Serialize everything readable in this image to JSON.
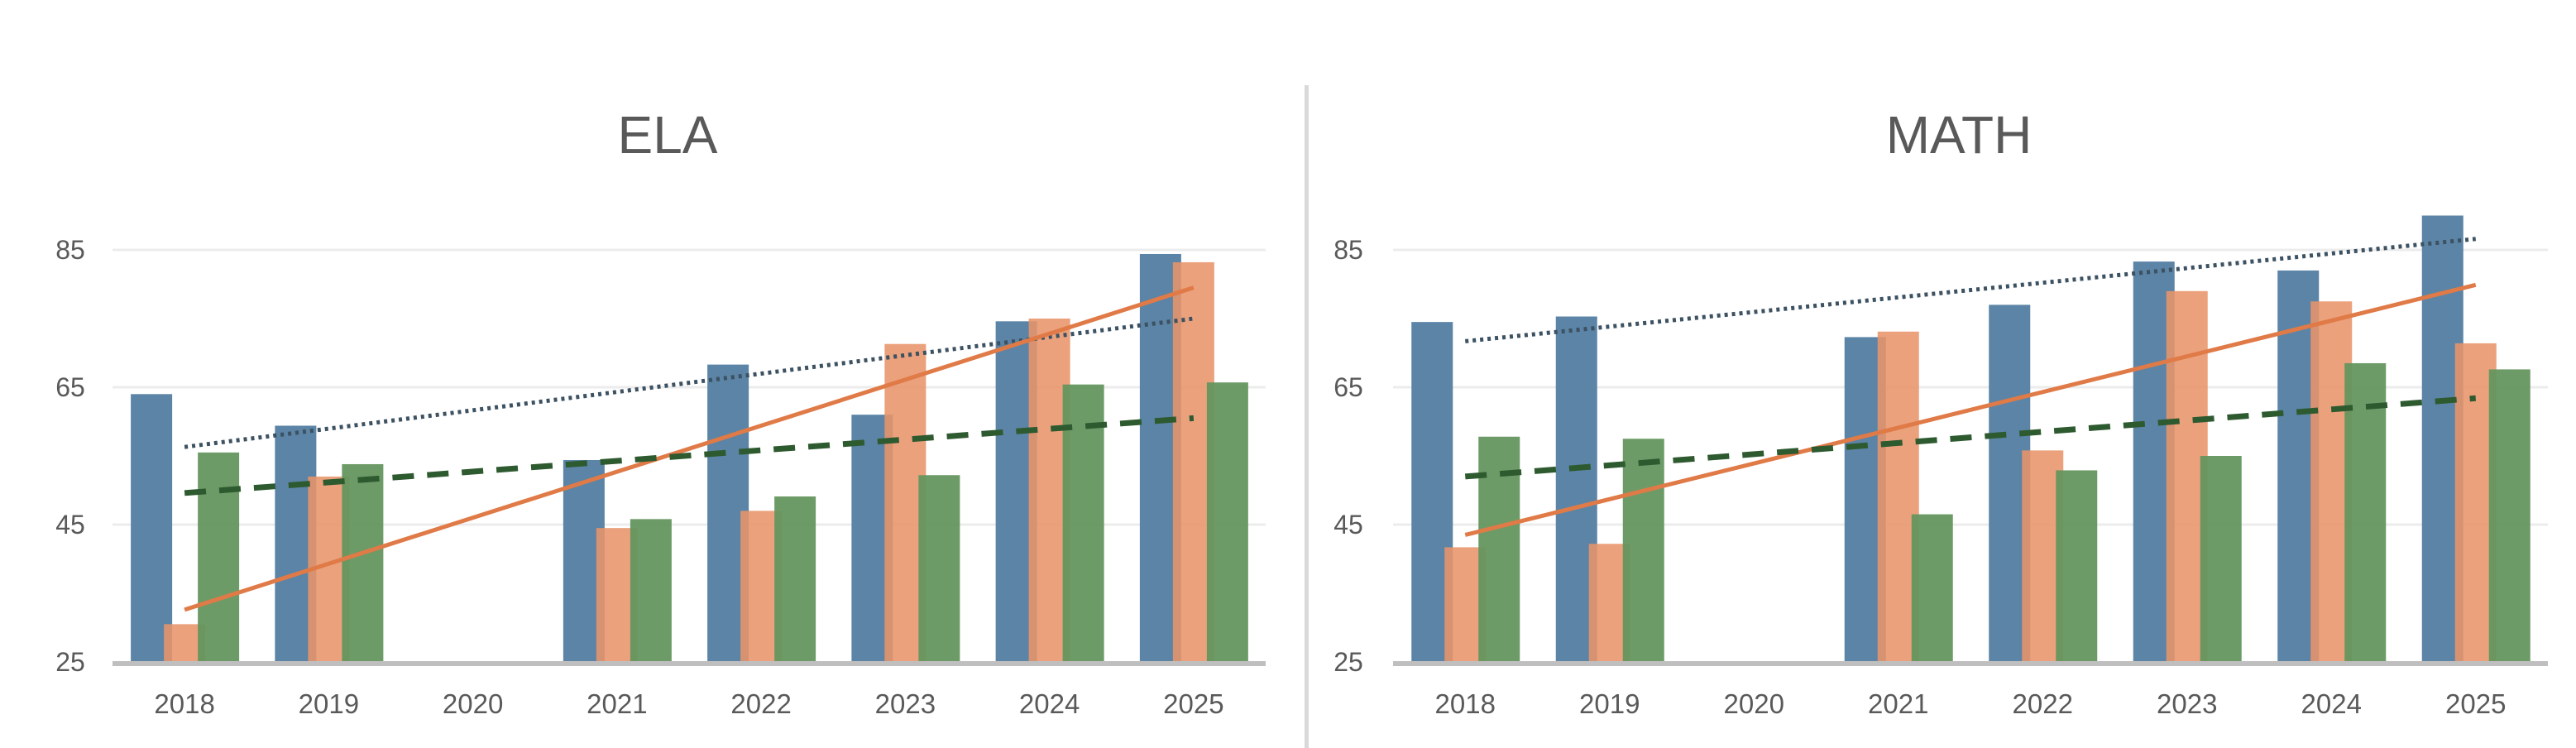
{
  "chart_data": [
    {
      "type": "bar",
      "title": "ELA",
      "xlabel": "",
      "ylabel": "",
      "ylim": [
        25,
        85
      ],
      "yticks": [
        25,
        45,
        65,
        85
      ],
      "grid": true,
      "legend": "none",
      "categories": [
        "2018",
        "2019",
        "2020",
        "2021",
        "2022",
        "2023",
        "2024",
        "2025"
      ],
      "series": [
        {
          "name": "Series 1",
          "color": "#5b84a6",
          "values": [
            64,
            59.4,
            null,
            54.4,
            68.3,
            61,
            74.6,
            84.4
          ]
        },
        {
          "name": "Series 2",
          "color": "#e8946a",
          "values": [
            30.5,
            52,
            null,
            44.5,
            47,
            71.3,
            75,
            83.2
          ]
        },
        {
          "name": "Series 3",
          "color": "#65965f",
          "values": [
            55.5,
            53.8,
            null,
            45.8,
            49.1,
            52.2,
            65.4,
            65.7
          ]
        }
      ],
      "trendlines": [
        {
          "series": "Series 1",
          "style": "dotted",
          "color": "#3c5161",
          "start": 56.3,
          "end": 75
        },
        {
          "series": "Series 2",
          "style": "solid",
          "color": "#e07a47",
          "start": 32.6,
          "end": 79.5
        },
        {
          "series": "Series 3",
          "style": "dashed",
          "color": "#2e5a30",
          "start": 49.6,
          "end": 60.5
        }
      ]
    },
    {
      "type": "bar",
      "title": "MATH",
      "xlabel": "",
      "ylabel": "",
      "ylim": [
        25,
        85
      ],
      "yticks": [
        25,
        45,
        65,
        85
      ],
      "grid": true,
      "legend": "none",
      "categories": [
        "2018",
        "2019",
        "2020",
        "2021",
        "2022",
        "2023",
        "2024",
        "2025"
      ],
      "series": [
        {
          "name": "Series 1",
          "color": "#5b84a6",
          "values": [
            74.5,
            75.3,
            null,
            72.3,
            77,
            83.3,
            82,
            90
          ]
        },
        {
          "name": "Series 2",
          "color": "#e8946a",
          "values": [
            41.7,
            42.2,
            null,
            73.1,
            55.8,
            79,
            77.5,
            71.4
          ]
        },
        {
          "name": "Series 3",
          "color": "#65965f",
          "values": [
            57.8,
            57.5,
            null,
            46.5,
            52.9,
            55,
            68.5,
            67.6
          ]
        }
      ],
      "trendlines": [
        {
          "series": "Series 1",
          "style": "dotted",
          "color": "#3c5161",
          "start": 71.7,
          "end": 86.6
        },
        {
          "series": "Series 2",
          "style": "solid",
          "color": "#e07a47",
          "start": 43.5,
          "end": 79.9
        },
        {
          "series": "Series 3",
          "style": "dashed",
          "color": "#2e5a30",
          "start": 52,
          "end": 63.4
        }
      ]
    }
  ],
  "colors": {
    "gridline": "#ececec",
    "axis": "#bfbfbf",
    "divider": "#d9d9d9",
    "text": "#595959"
  }
}
